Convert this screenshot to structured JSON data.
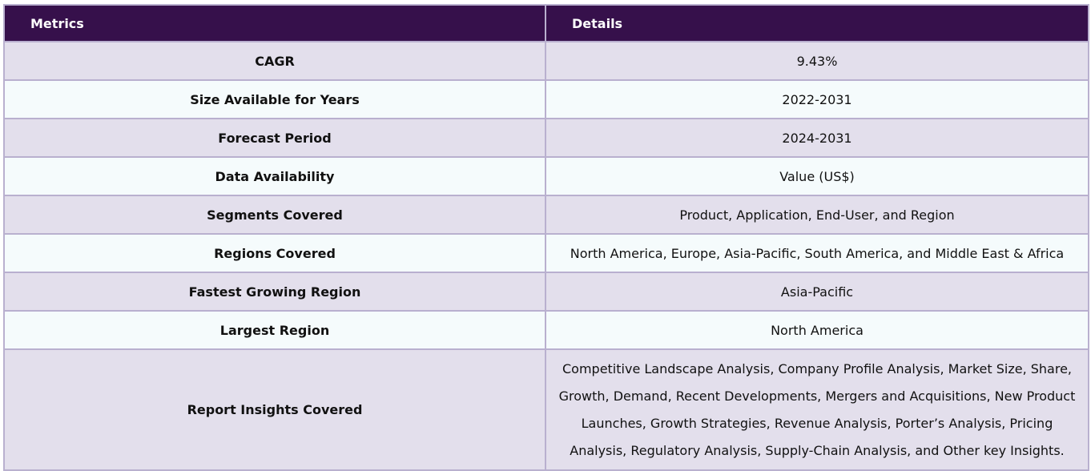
{
  "table": {
    "headers": [
      "Metrics",
      "Details"
    ],
    "rows": [
      {
        "metric": "CAGR",
        "detail": "9.43%"
      },
      {
        "metric": "Size Available for Years",
        "detail": "2022-2031"
      },
      {
        "metric": "Forecast Period",
        "detail": "2024-2031"
      },
      {
        "metric": "Data Availability",
        "detail": "Value (US$)"
      },
      {
        "metric": "Segments Covered",
        "detail": "Product, Application, End-User, and Region"
      },
      {
        "metric": "Regions Covered",
        "detail": "North America, Europe, Asia-Pacific, South America, and Middle East & Africa"
      },
      {
        "metric": "Fastest Growing Region",
        "detail": "Asia-Pacific"
      },
      {
        "metric": "Largest Region",
        "detail": "North America"
      },
      {
        "metric": "Report Insights Covered",
        "detail": "Competitive Landscape Analysis, Company Profile Analysis, Market Size, Share, Growth, Demand, Recent Developments, Mergers and Acquisitions, New Product Launches, Growth Strategies, Revenue Analysis, Porter’s Analysis, Pricing Analysis, Regulatory Analysis, Supply-Chain Analysis, and Other key Insights."
      }
    ]
  },
  "colors": {
    "header_bg": "#36104b",
    "row_odd_bg": "#e3dfec",
    "row_even_bg": "#f5fbfc",
    "border": "#b9b0cf"
  }
}
